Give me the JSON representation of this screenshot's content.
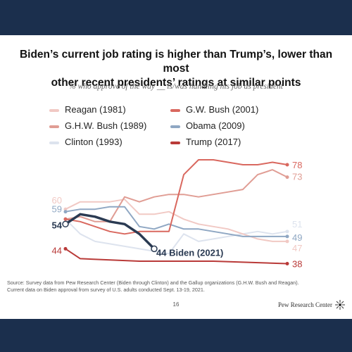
{
  "title_line1": "Biden’s current job rating is higher than Trump’s, lower than most",
  "title_line2": "other recent presidents’ ratings at similar points",
  "subtitle": "% who approve of the way __ is/was handling his job as president",
  "source_line1": "Source: Survey data from Pew Research Center (Biden through Clinton) and the Gallup organizations (G.H.W. Bush and Reagan).",
  "source_line2": "Current data on Biden approval from survey of U.S. adults conducted Sept. 13-19, 2021.",
  "page_number": "16",
  "brand": "Pew Research Center",
  "colors": {
    "background": "#1b2f4d",
    "reagan": "#f1c9c4",
    "ghw_bush": "#e09d94",
    "clinton": "#dde3ee",
    "gw_bush": "#d9685f",
    "obama": "#8fa7c3",
    "trump": "#b93a38",
    "biden": "#2a3a52"
  },
  "legend": {
    "reagan": "Reagan (1981)",
    "ghw_bush": "G.H.W. Bush (1989)",
    "clinton": "Clinton (1993)",
    "gw_bush": "G.W. Bush (2001)",
    "obama": "Obama (2009)",
    "trump": "Trump (2017)"
  },
  "chart_data": {
    "type": "line",
    "ylim": [
      35,
      82
    ],
    "xlim": [
      0,
      15
    ],
    "series": [
      {
        "name": "Reagan (1981)",
        "key": "reagan",
        "x": [
          0,
          1,
          2,
          3,
          4,
          5,
          6,
          7,
          8,
          9,
          10,
          11,
          12,
          13,
          14,
          15
        ],
        "values": [
          60,
          63,
          63,
          63,
          64,
          58,
          58,
          59,
          56,
          54,
          53,
          52,
          50,
          48,
          47,
          47
        ]
      },
      {
        "name": "G.H.W. Bush (1989)",
        "key": "ghw_bush",
        "x": [
          0,
          1,
          2,
          3,
          4,
          5,
          6,
          7,
          8,
          9,
          10,
          11,
          12,
          13,
          14,
          15
        ],
        "values": [
          56,
          57,
          55,
          55,
          65,
          63,
          65,
          66,
          66,
          65,
          66,
          67,
          68,
          74,
          76,
          73
        ]
      },
      {
        "name": "Clinton (1993)",
        "key": "clinton",
        "x": [
          0,
          1,
          2,
          3,
          4,
          5,
          6,
          7,
          8,
          9,
          10,
          11,
          12,
          13,
          14,
          15
        ],
        "values": [
          56,
          50,
          47,
          46,
          45,
          44,
          43,
          42,
          50,
          47,
          48,
          49,
          50,
          51,
          50,
          51
        ]
      },
      {
        "name": "G.W. Bush (2001)",
        "key": "gw_bush",
        "x": [
          0,
          1,
          2,
          3,
          4,
          5,
          6,
          7,
          8,
          9,
          10,
          11,
          12,
          13,
          14,
          15
        ],
        "values": [
          56,
          55,
          53,
          51,
          50,
          51,
          51,
          51,
          74,
          80,
          80,
          79,
          78,
          78,
          79,
          78
        ]
      },
      {
        "name": "Obama (2009)",
        "key": "obama",
        "x": [
          0,
          1,
          2,
          3,
          4,
          5,
          6,
          7,
          8,
          9,
          10,
          11,
          12,
          13,
          14,
          15
        ],
        "values": [
          59,
          60,
          60,
          61,
          61,
          53,
          52,
          54,
          52,
          52,
          51,
          50,
          49,
          49,
          49,
          49
        ]
      },
      {
        "name": "Trump (2017)",
        "key": "trump",
        "x": [
          0,
          1,
          5,
          10,
          15
        ],
        "values": [
          44,
          40,
          39,
          39,
          38
        ]
      },
      {
        "name": "Biden (2021)",
        "key": "biden",
        "x": [
          0,
          1,
          2,
          3,
          4,
          5,
          6
        ],
        "values": [
          54,
          58,
          57,
          55,
          54,
          50,
          44
        ]
      }
    ],
    "start_labels": [
      {
        "key": "reagan",
        "text": "60"
      },
      {
        "key": "obama",
        "text": "59"
      },
      {
        "key": "biden",
        "text": "54"
      },
      {
        "key": "trump",
        "text": "44"
      }
    ],
    "end_labels": [
      {
        "key": "gw_bush",
        "text": "78"
      },
      {
        "key": "ghw_bush",
        "text": "73"
      },
      {
        "key": "clinton",
        "text": "51"
      },
      {
        "key": "obama",
        "text": "49"
      },
      {
        "key": "reagan",
        "text": "47"
      },
      {
        "key": "trump",
        "text": "38"
      },
      {
        "key": "biden",
        "text": "44 Biden (2021)"
      }
    ]
  }
}
